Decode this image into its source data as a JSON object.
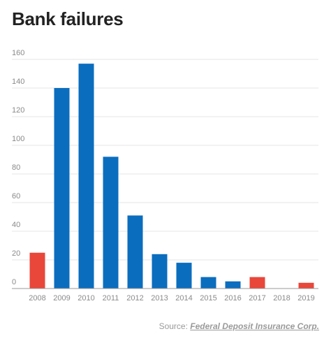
{
  "chart_data": {
    "type": "bar",
    "title": "Bank failures",
    "xlabel": "",
    "ylabel": "",
    "categories": [
      "2008",
      "2009",
      "2010",
      "2011",
      "2012",
      "2013",
      "2014",
      "2015",
      "2016",
      "2017",
      "2018",
      "2019"
    ],
    "values": [
      25,
      140,
      157,
      92,
      51,
      24,
      18,
      8,
      5,
      8,
      0,
      4
    ],
    "bar_colors": [
      "#e8473a",
      "#0b6dbe",
      "#0b6dbe",
      "#0b6dbe",
      "#0b6dbe",
      "#0b6dbe",
      "#0b6dbe",
      "#0b6dbe",
      "#0b6dbe",
      "#e8473a",
      "#e8473a",
      "#e8473a"
    ],
    "yticks": [
      0,
      20,
      40,
      60,
      80,
      100,
      120,
      140,
      160
    ],
    "ylim": [
      0,
      160
    ],
    "grid": true,
    "legend": "none"
  },
  "source": {
    "prefix": "Source: ",
    "link_text": "Federal Deposit Insurance Corp."
  },
  "colors": {
    "grid": "#e6e6e6",
    "axis": "#999999",
    "tick_text": "#8a8a8a",
    "title": "#222222"
  }
}
